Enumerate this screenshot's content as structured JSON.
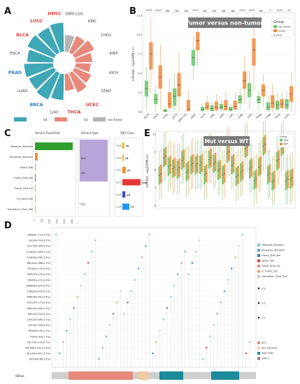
{
  "colors": {
    "teal": "#3fa7b6",
    "salmon": "#e8897c",
    "grey": "#b5b5b5",
    "tumor": "#f08a3c",
    "normal": "#6cc56a",
    "red_label": "#e03a3a",
    "blue_label": "#2f7fc1"
  },
  "panel_labels": {
    "A": "A",
    "B": "B",
    "C": "C",
    "D": "D",
    "E": "E"
  },
  "chart_data": [
    {
      "id": "A",
      "type": "radial-bar",
      "categories": [
        "GBM-LGG",
        "KIRC",
        "CHOL",
        "KIRP",
        "KICH",
        "STAD",
        "UCEC",
        "THCA",
        "LIHC",
        "BRCA",
        "LUAD",
        "PRAD",
        "ESCA",
        "BLCA",
        "LUSC",
        "HNSC"
      ],
      "group": [
        "non-tumor",
        "Q3",
        "Q3",
        "Q3",
        "Q3",
        "Q3",
        "Q3",
        "Q3",
        "Q4",
        "Q4",
        "Q4",
        "Q4",
        "Q4",
        "Q4",
        "Q4",
        "Q4"
      ],
      "values": [
        0.55,
        0.6,
        0.7,
        0.55,
        0.5,
        0.6,
        0.7,
        0.55,
        0.85,
        0.95,
        0.9,
        0.95,
        0.85,
        0.95,
        0.9,
        0.95
      ],
      "red_labels": [
        "HNSC",
        "LUSC",
        "BLCA",
        "UCEC",
        "THCA"
      ],
      "blue_labels": [
        "PRAD",
        "BRCA"
      ],
      "legend": [
        "Q4",
        "Q3",
        "non-tumor"
      ]
    },
    {
      "id": "B",
      "type": "box",
      "title": "Tumor versus non-tumor",
      "ylabel": "miR-944 · Log2(RPM+1)",
      "ylim": [
        0,
        12.5
      ],
      "yticks": [
        "0.0",
        "2.5",
        "5.0",
        "7.5",
        "10.0",
        "12.5"
      ],
      "legend_title": "Group",
      "legend": [
        "non-tumor",
        "tumor"
      ],
      "legend_note": "p value",
      "categories": [
        "BLCA",
        "BRCA",
        "CHOL",
        "ESCA",
        "GBM-LGG",
        "HNSC",
        "KICH",
        "KIRC",
        "KIRP",
        "LIHC",
        "LUAD",
        "LUSC",
        "PRAD",
        "STAD",
        "THCA",
        "UCEC"
      ],
      "signif": [
        "****",
        "****",
        "ns",
        "ns",
        "ns",
        "****",
        "ns",
        "ns",
        "ns",
        "ns",
        "****",
        "****",
        "ns",
        "*",
        "****",
        "**"
      ],
      "normal": [
        [
          2.0,
          3.0,
          4.0
        ],
        [
          1.0,
          1.6,
          2.3
        ],
        [
          0.0,
          0.1,
          0.3
        ],
        [
          0.8,
          2.0,
          3.0
        ],
        null,
        [
          6.0,
          7.0,
          8.0
        ],
        [
          0.1,
          0.3,
          0.6
        ],
        [
          0.1,
          0.4,
          0.8
        ],
        [
          0.3,
          0.6,
          1.0
        ],
        [
          0.1,
          0.3,
          0.6
        ],
        [
          1.1,
          1.6,
          2.1
        ],
        [
          1.9,
          2.8,
          3.7
        ],
        [
          1.1,
          1.6,
          2.0
        ],
        [
          0.2,
          0.6,
          1.2
        ],
        [
          0.3,
          0.9,
          1.4
        ],
        [
          0.4,
          0.9,
          1.6
        ]
      ],
      "tumor": [
        [
          5.5,
          7.5,
          9.0
        ],
        [
          3.0,
          4.5,
          6.0
        ],
        [
          0.5,
          1.0,
          2.5
        ],
        [
          2.0,
          3.5,
          5.0
        ],
        [
          0.1,
          0.3,
          1.5
        ],
        [
          8.0,
          9.2,
          10.3
        ],
        [
          0.3,
          0.6,
          1.2
        ],
        [
          0.2,
          0.6,
          1.3
        ],
        [
          0.2,
          0.7,
          1.5
        ],
        [
          0.3,
          0.7,
          1.4
        ],
        [
          3.0,
          4.0,
          5.2
        ],
        [
          6.0,
          8.0,
          9.5
        ],
        [
          2.0,
          2.8,
          3.5
        ],
        [
          0.5,
          1.1,
          2.1
        ],
        [
          0.5,
          1.0,
          1.6
        ],
        [
          1.3,
          2.3,
          3.3
        ]
      ]
    },
    {
      "id": "C1",
      "type": "bar",
      "title": "Variant Classificat",
      "categories": [
        "Missense_Mutation",
        "Nonsense_Mutation",
        "Splice_Site",
        "Frame_Shift_Del",
        "Frame_Shift_Ins",
        "In_Frame_Del",
        "Translation_Start_Site"
      ],
      "values": [
        280,
        20,
        5,
        5,
        3,
        2,
        2
      ],
      "xticks": [
        "0",
        "50",
        "100",
        "150",
        "200",
        "250"
      ]
    },
    {
      "id": "C2",
      "type": "bar",
      "title": "Variant Type",
      "categories": [
        "SNP",
        "INS",
        "DEL"
      ],
      "values": [
        310,
        3,
        8
      ]
    },
    {
      "id": "C3",
      "type": "bar",
      "title": "SNV Class",
      "categories": [
        "T>G",
        "T>A",
        "T>C",
        "C>T",
        "C>G",
        "C>A"
      ],
      "values": [
        20,
        14,
        37,
        200,
        33,
        77
      ],
      "labels": [
        "20",
        "14",
        "37",
        "200",
        "33",
        "77"
      ],
      "colors": [
        "#f4b400",
        "#ff9f1c",
        "#f28c28",
        "#e53935",
        "#3f51b5",
        "#2196f3"
      ]
    },
    {
      "id": "E",
      "type": "box",
      "title": "Mut versus WT",
      "ylabel": "miR-944 · Log2(RPM+1)",
      "ylim": [
        0,
        12
      ],
      "yticks": [
        "0",
        "3",
        "6",
        "9",
        "12"
      ],
      "legend_title": "Group",
      "legend": [
        "Mut",
        "WT"
      ]
    },
    {
      "id": "D",
      "type": "lollipop",
      "rows": [
        "GBM(N=+16,2.0%)",
        "LGG(N=503,0.4%)",
        "CESC(N=306,0.4%)",
        "UCAD(N=389,0.1%)",
        "COAD(N=282,1.8%)",
        "BRCA(N=988,0.2%)",
        "TSCA(N=130,0.6%)",
        "SARC(N=234,0.9%)",
        "KIRP(N=279,0.4%)",
        "KIPAN(N=679,0.9%)",
        "STAD(N=439,3.2%)",
        "PRAD(N=492,0.6%)",
        "UCEC(N=175,0.9%)",
        "HNSC(N=498,2.9%)",
        "KIRC(N=334,0.9%)",
        "LUSC(N=485,2.1%)",
        "LIHC(N=359,0.8%)",
        "READ(N=90,2.2%)",
        "OV(N=303,1.7%)",
        "TGCT(N=145,0.7%)",
        "SKCM(N=102,11.9%)",
        "BLCA(N=407,3.4%)",
        "KICH(N=66,3.0%)"
      ],
      "legend": [
        "Missense_Mutation",
        "Nonsense_Mutation",
        "Frame_Shift_Del",
        "Splice_Site",
        "Frame_Shift_Ins",
        "In_Frame_Del",
        "Translation_Start_Site"
      ],
      "legend_colors": [
        "#7fc8c8",
        "#5aa4c8",
        "#3b76b5",
        "#e23b3b",
        "#f08a8a",
        "#f4a26b",
        "#c8c8c8"
      ],
      "size_legend": [
        "1.0",
        "2.0",
        "3.0"
      ],
      "domain_legend": [
        "p53",
        "p53 tetramer",
        "SAM TP63",
        "SAM 2"
      ],
      "domain_colors": [
        "#e8897c",
        "#f4c9a0",
        "#1b8a9a",
        "#7d7d7d"
      ],
      "axis_label": "680aa"
    }
  ]
}
